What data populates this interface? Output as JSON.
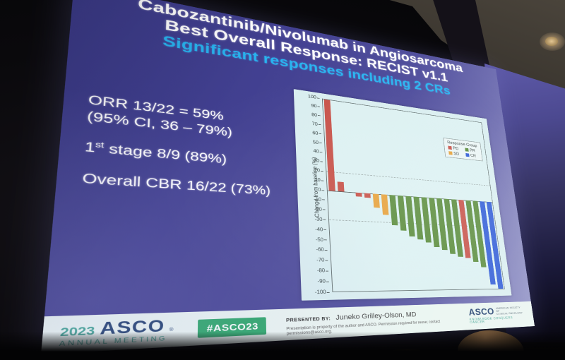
{
  "slide": {
    "title_line1": "Cabozantinib/Nivolumab in Angiosarcoma",
    "title_line2": "Best Overall Response: RECIST v1.1",
    "subtitle": "Significant responses including 2 CRs",
    "stats": {
      "orr_line1": "ORR 13/22 = 59%",
      "orr_line2": "(95% CI, 36 – 79%)",
      "stage_num": "1",
      "stage_sup": "st",
      "stage_text": " stage 8/9 (89%)",
      "cbr": "Overall CBR 16/22 (73%)"
    },
    "colors": {
      "background": "#434192",
      "subtitle_cyan": "#28b4f0",
      "chart_panel": "#d9eef0"
    }
  },
  "chart_data": {
    "type": "bar",
    "title": "",
    "xlabel": "",
    "ylabel": "Change from baseline (%)",
    "ylim": [
      -100,
      100
    ],
    "ytick_step": 10,
    "grid": false,
    "reference_lines": [
      20,
      -30
    ],
    "legend": {
      "title": "Response Group",
      "position": "top-right",
      "entries": [
        {
          "label": "PD",
          "color": "#c75148"
        },
        {
          "label": "PR",
          "color": "#5a8c3c"
        },
        {
          "label": "SD",
          "color": "#e6a13a"
        },
        {
          "label": "CR",
          "color": "#2e5bd7"
        }
      ]
    },
    "bars": [
      {
        "value": 100,
        "group": "PD"
      },
      {
        "value": 10,
        "group": "PD"
      },
      {
        "value": 0,
        "group": "SD"
      },
      {
        "value": -4,
        "group": "PD"
      },
      {
        "value": -5,
        "group": "PD"
      },
      {
        "value": -15,
        "group": "SD"
      },
      {
        "value": -22,
        "group": "SD"
      },
      {
        "value": -33,
        "group": "PR"
      },
      {
        "value": -38,
        "group": "PR"
      },
      {
        "value": -44,
        "group": "PR"
      },
      {
        "value": -47,
        "group": "PR"
      },
      {
        "value": -50,
        "group": "PR"
      },
      {
        "value": -55,
        "group": "PR"
      },
      {
        "value": -58,
        "group": "PR"
      },
      {
        "value": -62,
        "group": "PR"
      },
      {
        "value": -65,
        "group": "PR"
      },
      {
        "value": -66,
        "group": "PD"
      },
      {
        "value": -70,
        "group": "PR"
      },
      {
        "value": -76,
        "group": "PR"
      },
      {
        "value": -95,
        "group": "CR"
      },
      {
        "value": -100,
        "group": "CR"
      }
    ]
  },
  "footer": {
    "meeting_year": "2023",
    "meeting_name": "ASCO",
    "meeting_reg": "®",
    "meeting_sub": "ANNUAL MEETING",
    "hashtag": "#ASCO23",
    "hashtag_color": "#2aa567",
    "presented_by_label": "PRESENTED BY:",
    "presenter": "Juneko Grilley-Olson, MD",
    "copyright": "Presentation is property of the author and ASCO. Permission required for reuse; contact permissions@asco.org.",
    "asco_logo": "ASCO",
    "asco_line1": "AMERICAN SOCIETY OF",
    "asco_line2": "CLINICAL ONCOLOGY",
    "asco_motto": "KNOWLEDGE CONQUERS CANCER"
  }
}
